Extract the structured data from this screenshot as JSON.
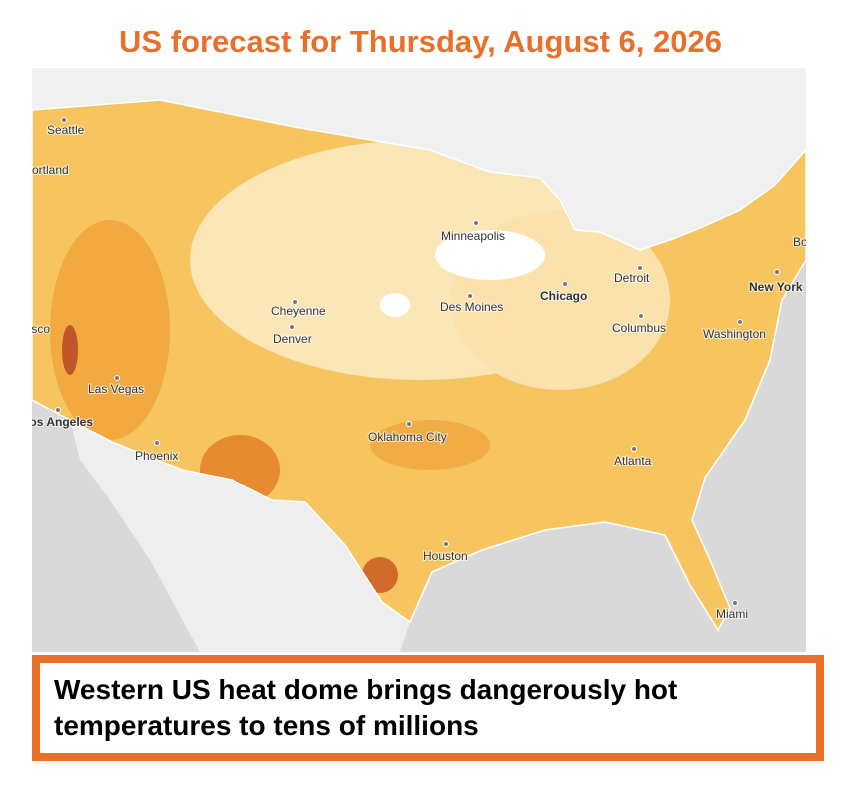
{
  "title": "US forecast for Thursday, August 6, 2026",
  "map": {
    "cities": [
      "Seattle",
      "Portland",
      "Minneapolis",
      "Cheyenne",
      "Denver",
      "Des Moines",
      "Chicago",
      "Detroit",
      "New York",
      "Boston",
      "Columbus",
      "Washington",
      "San Francisco",
      "Las Vegas",
      "Los Angeles",
      "Phoenix",
      "Oklahoma City",
      "Atlanta",
      "Houston",
      "Miami"
    ]
  },
  "caption": "Western US heat dome brings dangerously hot temperatures to tens of millions"
}
